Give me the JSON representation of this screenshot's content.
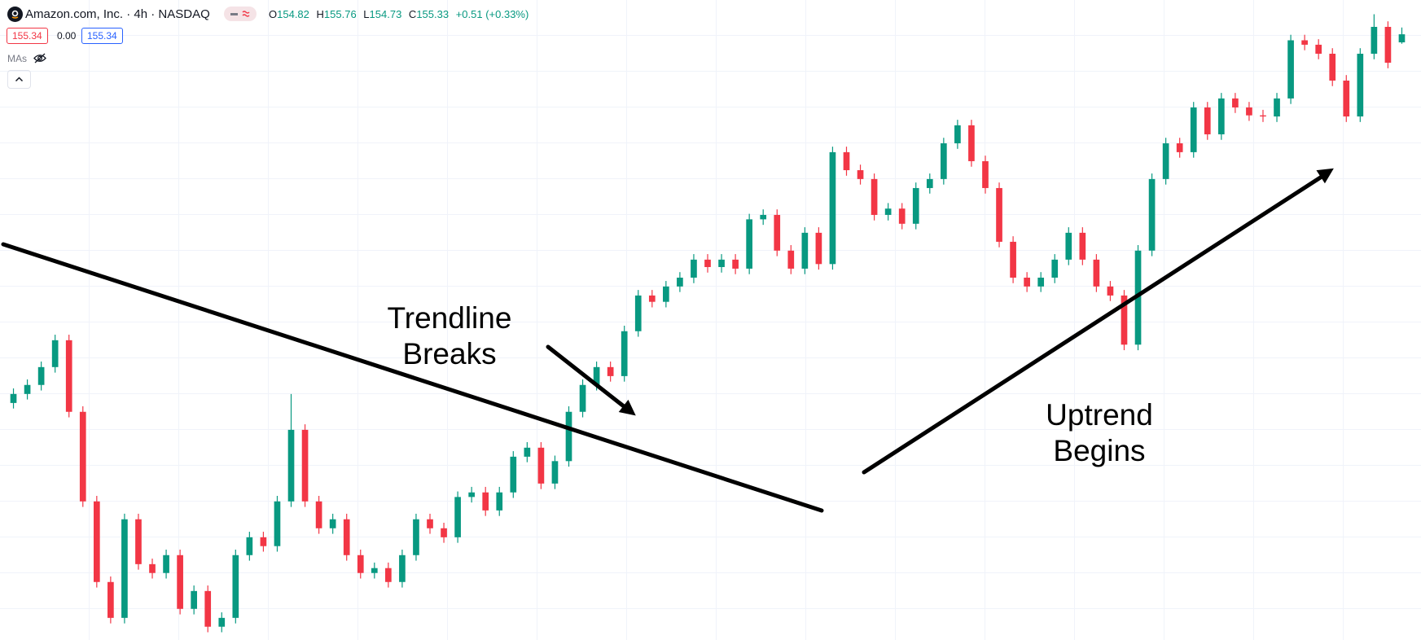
{
  "header": {
    "symbol": "Amazon.com, Inc. · 4h · NASDAQ",
    "ohlc": [
      {
        "label": "O",
        "value": 154.82
      },
      {
        "label": "H",
        "value": 155.76
      },
      {
        "label": "L",
        "value": 154.73
      },
      {
        "label": "C",
        "value": 155.33
      }
    ],
    "change": "+0.51 (+0.33%)",
    "sell_price": 155.34,
    "spread": "0.00",
    "buy_price": 155.34,
    "indicator": "MAs"
  },
  "chart_data": {
    "type": "candlestick",
    "up_color": "#089981",
    "down_color": "#f23645",
    "ylim": [
      117,
      157.5
    ],
    "open": [
      132.0,
      132.57,
      133.14,
      134.27,
      135.97,
      131.44,
      125.77,
      120.67,
      118.4,
      124.64,
      121.8,
      121.24,
      122.37,
      118.97,
      120.1,
      117.84,
      118.4,
      122.37,
      123.5,
      122.94,
      125.77,
      130.3,
      125.77,
      124.07,
      124.64,
      122.37,
      121.24,
      121.55,
      120.67,
      122.37,
      124.64,
      124.07,
      123.5,
      126.05,
      126.34,
      125.2,
      126.34,
      128.6,
      129.17,
      126.9,
      128.32,
      131.44,
      133.14,
      134.27,
      133.7,
      136.54,
      138.8,
      138.4,
      139.37,
      139.93,
      141.07,
      140.6,
      141.07,
      140.5,
      143.62,
      143.9,
      141.64,
      140.5,
      142.77,
      140.79,
      147.87,
      146.73,
      146.17,
      143.9,
      144.3,
      143.34,
      145.6,
      146.17,
      148.43,
      149.57,
      147.3,
      145.6,
      142.2,
      139.93,
      139.37,
      139.93,
      141.07,
      142.77,
      141.07,
      139.37,
      138.8,
      135.69,
      141.64,
      146.17,
      148.43,
      147.87,
      150.7,
      149.0,
      151.27,
      150.7,
      150.2,
      150.13,
      151.27,
      154.95,
      154.67,
      154.1,
      152.4,
      150.13,
      154.1,
      155.8,
      154.82
    ],
    "high": [
      132.92,
      133.49,
      134.62,
      136.32,
      136.32,
      131.79,
      126.12,
      121.02,
      124.99,
      124.99,
      122.15,
      122.72,
      122.72,
      120.45,
      120.45,
      118.75,
      122.72,
      123.85,
      123.85,
      126.12,
      132.57,
      130.65,
      126.12,
      124.99,
      124.99,
      122.72,
      121.9,
      121.9,
      122.72,
      124.99,
      124.99,
      124.42,
      126.4,
      126.69,
      126.69,
      126.69,
      128.95,
      129.52,
      129.52,
      128.67,
      131.79,
      133.49,
      134.62,
      134.62,
      136.89,
      139.15,
      139.15,
      139.72,
      140.28,
      141.42,
      141.42,
      141.42,
      141.42,
      143.97,
      144.25,
      144.25,
      141.99,
      143.12,
      143.12,
      148.22,
      148.22,
      147.08,
      146.52,
      144.65,
      144.65,
      145.95,
      146.52,
      148.78,
      149.92,
      149.92,
      147.65,
      145.95,
      142.55,
      140.28,
      140.28,
      141.42,
      143.12,
      143.12,
      141.42,
      139.72,
      139.15,
      141.99,
      146.52,
      148.78,
      148.78,
      151.05,
      151.05,
      151.62,
      151.62,
      151.05,
      150.55,
      151.62,
      155.3,
      155.3,
      155.02,
      154.45,
      152.75,
      154.45,
      156.6,
      156.15,
      155.76
    ],
    "low": [
      131.65,
      132.22,
      132.79,
      133.92,
      131.09,
      125.42,
      120.32,
      118.05,
      118.05,
      121.45,
      120.89,
      120.89,
      118.62,
      118.62,
      117.49,
      117.49,
      118.05,
      122.02,
      122.59,
      122.59,
      125.42,
      125.42,
      123.72,
      123.72,
      122.02,
      120.89,
      120.89,
      120.32,
      120.32,
      122.02,
      123.72,
      123.15,
      123.15,
      125.7,
      124.85,
      124.85,
      125.99,
      128.25,
      126.55,
      126.55,
      127.97,
      131.09,
      132.79,
      133.35,
      133.35,
      136.19,
      138.05,
      138.05,
      139.02,
      139.58,
      140.25,
      140.25,
      140.15,
      140.15,
      143.27,
      141.29,
      140.15,
      140.15,
      140.44,
      140.44,
      146.38,
      145.82,
      143.55,
      143.55,
      142.99,
      142.99,
      145.25,
      145.82,
      148.08,
      146.95,
      145.25,
      141.85,
      139.58,
      139.02,
      139.02,
      139.58,
      140.72,
      140.72,
      139.02,
      138.45,
      135.34,
      135.34,
      141.29,
      145.82,
      147.52,
      147.52,
      148.65,
      148.65,
      150.35,
      149.85,
      149.78,
      149.78,
      150.92,
      154.32,
      153.75,
      152.05,
      149.78,
      149.78,
      153.75,
      153.18,
      154.73
    ],
    "close": [
      132.57,
      133.14,
      134.27,
      135.97,
      131.44,
      125.77,
      120.67,
      118.4,
      124.64,
      121.8,
      121.24,
      122.37,
      118.97,
      120.1,
      117.84,
      118.4,
      122.37,
      123.5,
      122.94,
      125.77,
      130.3,
      125.77,
      124.07,
      124.64,
      122.37,
      121.24,
      121.55,
      120.67,
      122.37,
      124.64,
      124.07,
      123.5,
      126.05,
      126.34,
      125.2,
      126.34,
      128.6,
      129.17,
      126.9,
      128.32,
      131.44,
      133.14,
      134.27,
      133.7,
      136.54,
      138.8,
      138.4,
      139.37,
      139.93,
      141.07,
      140.6,
      141.07,
      140.5,
      143.62,
      143.9,
      141.64,
      140.5,
      142.77,
      140.79,
      147.87,
      146.73,
      146.17,
      143.9,
      144.3,
      143.34,
      145.6,
      146.17,
      148.43,
      149.57,
      147.3,
      145.6,
      142.2,
      139.93,
      139.37,
      139.93,
      141.07,
      142.77,
      141.07,
      139.37,
      138.8,
      135.69,
      141.64,
      146.17,
      148.43,
      147.87,
      150.7,
      149.0,
      151.27,
      150.7,
      150.2,
      150.13,
      151.27,
      154.95,
      154.67,
      154.1,
      152.4,
      150.13,
      154.1,
      155.8,
      153.53,
      155.33
    ],
    "annotations": [
      [
        "Trendline",
        "Breaks"
      ],
      [
        "Uptrend",
        "Begins"
      ]
    ]
  }
}
